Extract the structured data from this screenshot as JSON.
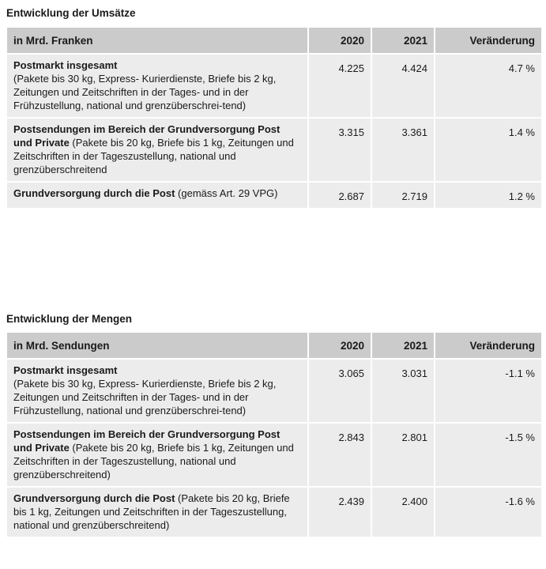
{
  "tables": [
    {
      "title": "Entwicklung der Umsätze",
      "headers": [
        "in Mrd. Franken",
        "2020",
        "2021",
        "Veränderung"
      ],
      "rows": [
        {
          "bold": "Postmarkt insgesamt",
          "rest": "(Pakete bis 30 kg, Express- Kurierdienste, Briefe bis 2 kg, Zeitungen und Zeitschriften in der Tages- und in der Frühzustellung, national und grenzüberschrei-tend)",
          "v2020": "4.225",
          "v2021": "4.424",
          "change": "4.7 %"
        },
        {
          "bold": "Postsendungen im Bereich der Grundversorgung Post und Private",
          "rest": " (Pakete bis 20 kg, Briefe bis 1 kg, Zeitungen und Zeitschriften in der Tageszustellung, national und grenzüberschreitend",
          "v2020": "3.315",
          "v2021": "3.361",
          "change": "1.4 %"
        },
        {
          "bold": "Grundversorgung durch die Post",
          "rest": " (gemäss Art. 29 VPG)",
          "v2020": "2.687",
          "v2021": "2.719",
          "change": "1.2 %"
        }
      ]
    },
    {
      "title": "Entwicklung der Mengen",
      "headers": [
        "in Mrd. Sendungen",
        "2020",
        "2021",
        "Veränderung"
      ],
      "rows": [
        {
          "bold": "Postmarkt insgesamt",
          "rest": "(Pakete bis 30 kg, Express- Kurierdienste, Briefe bis 2 kg, Zeitungen und Zeitschriften in der Tages- und in der Frühzustellung, national und grenzüberschrei-tend)",
          "v2020": "3.065",
          "v2021": "3.031",
          "change": "-1.1 %"
        },
        {
          "bold": "Postsendungen im Bereich der Grundversorgung Post und Private",
          "rest": " (Pakete bis 20 kg, Briefe bis 1 kg, Zeitungen und Zeitschriften in der Tageszustellung, national und grenzüberschreitend)",
          "v2020": "2.843",
          "v2021": "2.801",
          "change": "-1.5 %"
        },
        {
          "bold": "Grundversorgung durch die Post",
          "rest": " (Pakete bis 20 kg, Briefe bis 1 kg, Zeitungen und Zeitschriften in der Tageszustellung, national und grenzüberschreitend)",
          "v2020": "2.439",
          "v2021": "2.400",
          "change": "-1.6 %"
        }
      ]
    }
  ]
}
